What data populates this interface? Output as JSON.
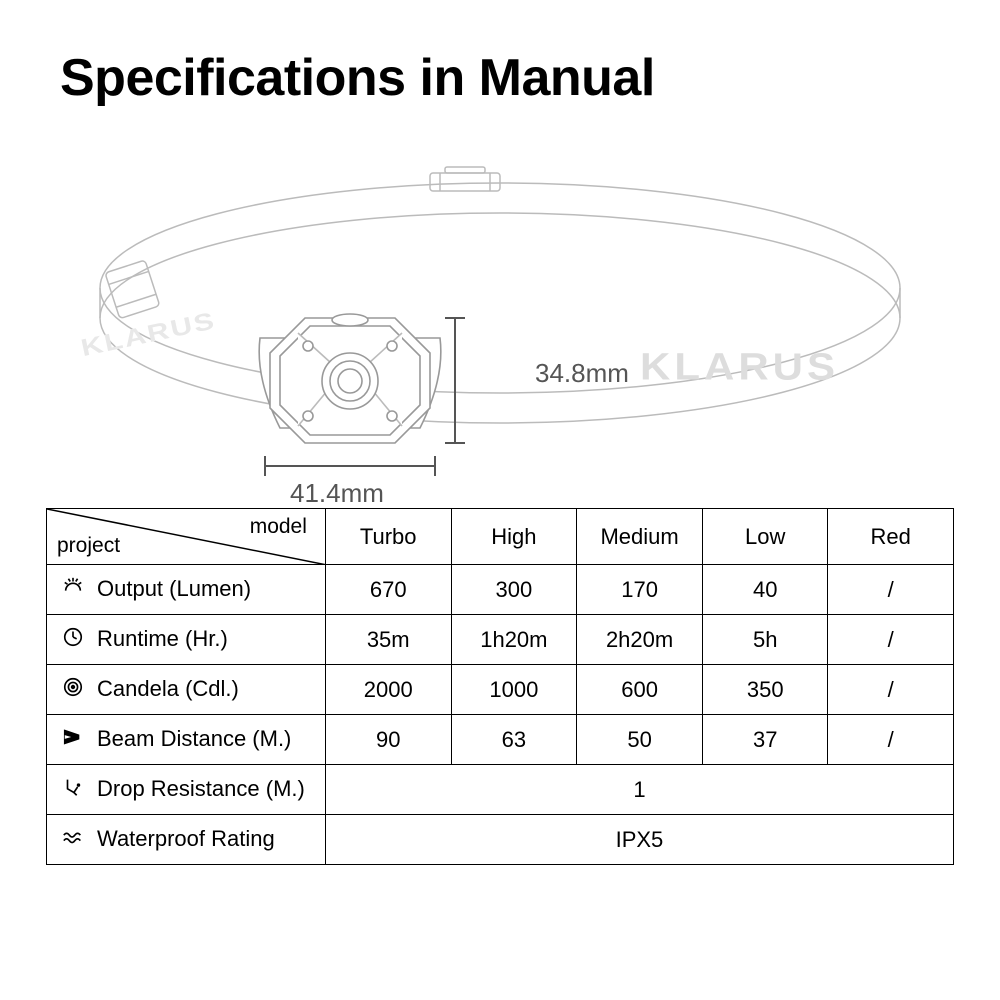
{
  "title": "Specifications in Manual",
  "brand": "KLARUS",
  "dimensions": {
    "height": "34.8mm",
    "width": "41.4mm"
  },
  "table": {
    "header": {
      "corner_top": "model",
      "corner_bottom": "project",
      "modes": [
        "Turbo",
        "High",
        "Medium",
        "Low",
        "Red"
      ]
    },
    "rows": [
      {
        "icon": "sun",
        "label": "Output (Lumen)",
        "values": [
          "670",
          "300",
          "170",
          "40",
          "/"
        ]
      },
      {
        "icon": "clock",
        "label": "Runtime (Hr.)",
        "values": [
          "35m",
          "1h20m",
          "2h20m",
          "5h",
          "/"
        ]
      },
      {
        "icon": "target",
        "label": "Candela (Cdl.)",
        "values": [
          "2000",
          "1000",
          "600",
          "350",
          "/"
        ]
      },
      {
        "icon": "beam",
        "label": "Beam Distance (M.)",
        "values": [
          "90",
          "63",
          "50",
          "37",
          "/"
        ]
      },
      {
        "icon": "drop",
        "label": "Drop Resistance (M.)",
        "span": 5,
        "value": "1"
      },
      {
        "icon": "water",
        "label": "Waterproof Rating",
        "span": 5,
        "value": "IPX5"
      }
    ]
  },
  "style": {
    "stroke": "#888",
    "stroke_light": "#ccc",
    "text_dim": "#555",
    "title_size": 52,
    "cell_font": 22,
    "border_color": "#000"
  }
}
